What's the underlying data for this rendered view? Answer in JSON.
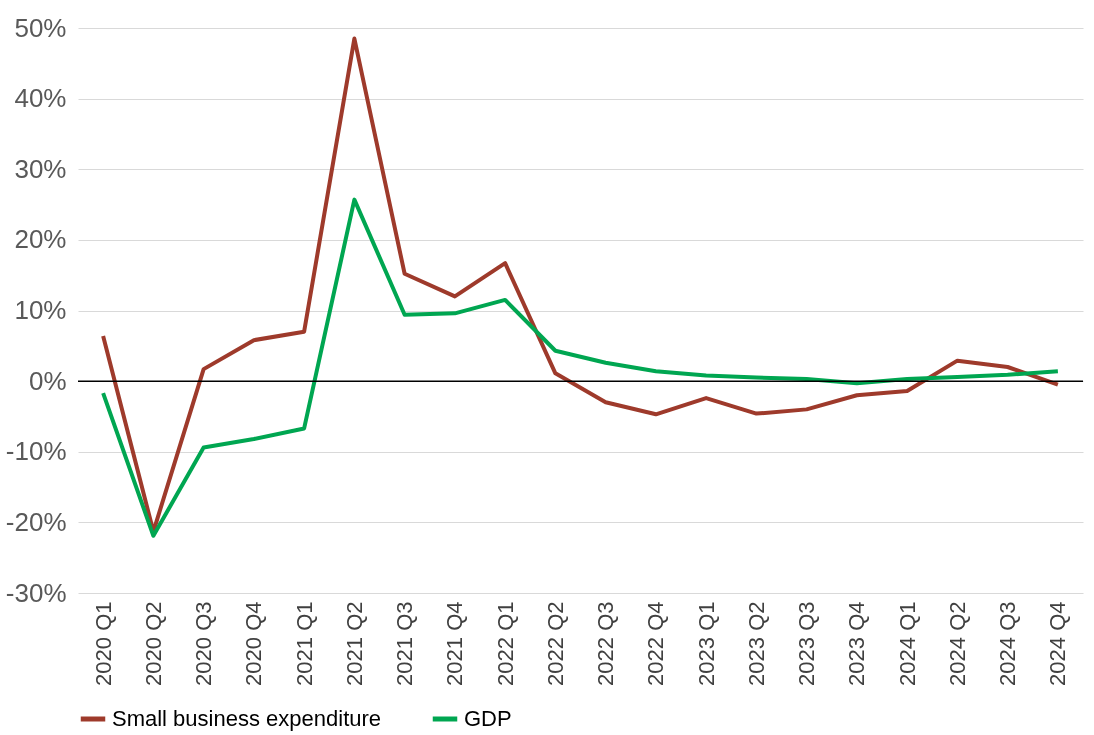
{
  "chart_data": {
    "type": "line",
    "categories": [
      "2020 Q1",
      "2020 Q2",
      "2020 Q3",
      "2020 Q4",
      "2021 Q1",
      "2021 Q2",
      "2021 Q3",
      "2021 Q4",
      "2022 Q1",
      "2022 Q2",
      "2022 Q3",
      "2022 Q4",
      "2023 Q1",
      "2023 Q2",
      "2023 Q3",
      "2023 Q4",
      "2024 Q1",
      "2024 Q2",
      "2024 Q3",
      "2024 Q4"
    ],
    "series": [
      {
        "name": "Small business expenditure",
        "color": "#9e3a2b",
        "values": [
          6.4,
          -21.3,
          1.7,
          5.8,
          7.0,
          48.5,
          15.2,
          12.0,
          16.7,
          1.1,
          -3.0,
          -4.7,
          -2.4,
          -4.6,
          -4.0,
          -2.0,
          -1.4,
          2.9,
          2.0,
          -0.5
        ]
      },
      {
        "name": "GDP",
        "color": "#00a651",
        "values": [
          -1.7,
          -21.9,
          -9.4,
          -8.2,
          -6.7,
          25.7,
          9.4,
          9.6,
          11.5,
          4.3,
          2.6,
          1.4,
          0.8,
          0.5,
          0.3,
          -0.3,
          0.3,
          0.6,
          0.9,
          1.4
        ]
      }
    ],
    "ylim": [
      -30,
      50
    ],
    "yticks": [
      {
        "value": -30,
        "label": "-30%"
      },
      {
        "value": -20,
        "label": "-20%"
      },
      {
        "value": -10,
        "label": "-10%"
      },
      {
        "value": 0,
        "label": "0%"
      },
      {
        "value": 10,
        "label": "10%"
      },
      {
        "value": 20,
        "label": "20%"
      },
      {
        "value": 30,
        "label": "30%"
      },
      {
        "value": 40,
        "label": "40%"
      },
      {
        "value": 50,
        "label": "50%"
      }
    ],
    "ref_lines": [
      {
        "axis": "y",
        "value": 0,
        "label": null,
        "color": "#000000"
      }
    ],
    "grid": "y",
    "legend": "bottom",
    "marker": "none",
    "line_style": "solid"
  }
}
